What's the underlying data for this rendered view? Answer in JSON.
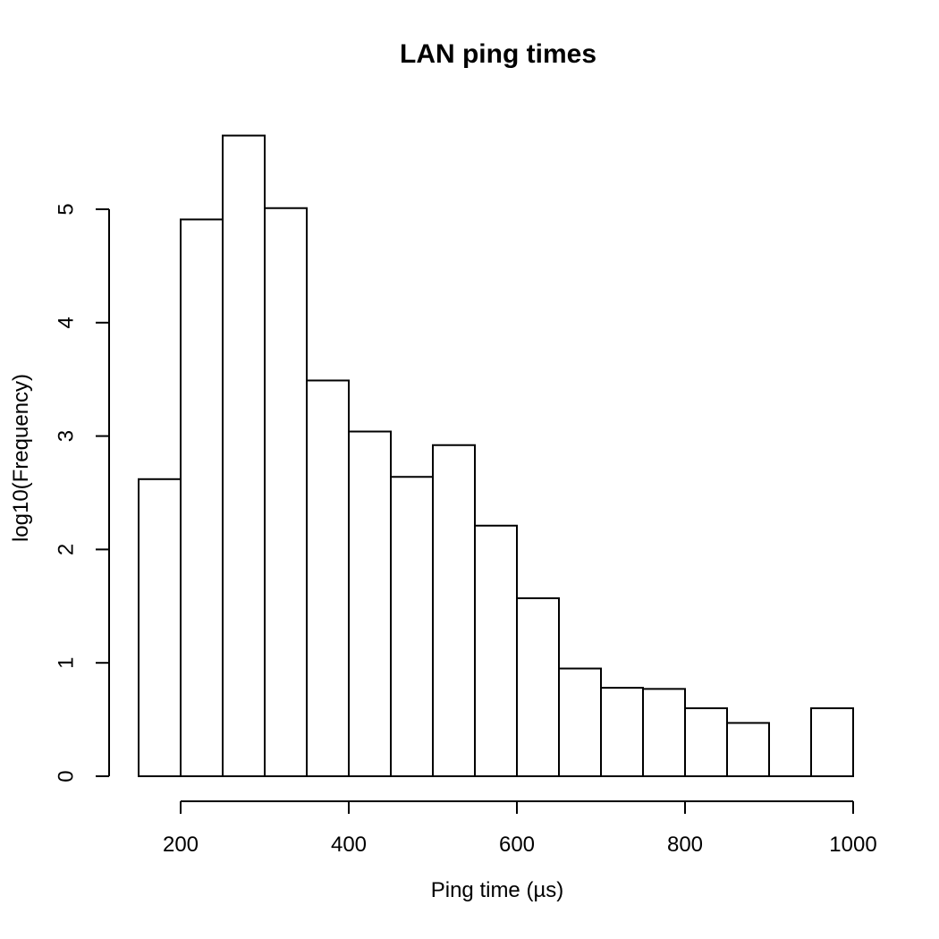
{
  "title": "LAN ping times",
  "xlabel": "Ping time (µs)",
  "ylabel": "log10(Frequency)",
  "chart_data": {
    "type": "bar",
    "subtype": "histogram",
    "title": "LAN ping times",
    "xlabel": "Ping time (µs)",
    "ylabel": "log10(Frequency)",
    "bin_edges": [
      150,
      200,
      250,
      300,
      350,
      400,
      450,
      500,
      550,
      600,
      650,
      700,
      750,
      800,
      850,
      900,
      950,
      1000
    ],
    "values": [
      2.62,
      4.91,
      5.65,
      5.01,
      3.49,
      3.04,
      2.64,
      2.92,
      2.21,
      1.57,
      0.95,
      0.78,
      0.77,
      0.6,
      0.47,
      0,
      0.6
    ],
    "x_ticks": [
      200,
      400,
      600,
      800,
      1000
    ],
    "y_ticks": [
      0,
      1,
      2,
      3,
      4,
      5
    ],
    "xlim": [
      150,
      1000
    ],
    "ylim": [
      0,
      5.65
    ],
    "grid": false,
    "legend": "none",
    "bar_fill": "#ffffff",
    "bar_stroke": "#000000",
    "axis_color": "#000000",
    "background": "#ffffff"
  }
}
